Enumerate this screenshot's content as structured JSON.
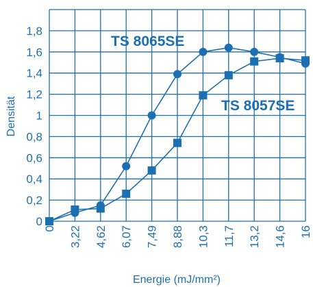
{
  "chart_data": {
    "type": "line",
    "title": "",
    "xlabel": "Energie (mJ/mm²)",
    "ylabel": "Densität",
    "categories": [
      "0",
      "3,22",
      "4,62",
      "6,07",
      "7,49",
      "8,88",
      "10,3",
      "11,7",
      "13,2",
      "14,6",
      "16"
    ],
    "y_ticks": [
      "0",
      "0,2",
      "0,4",
      "0,6",
      "0,8",
      "1",
      "1,2",
      "1,4",
      "1,6",
      "1,8"
    ],
    "ylim": [
      0,
      2.0
    ],
    "grid": true,
    "series": [
      {
        "name": "TS 8065SE",
        "marker": "circle",
        "values": [
          0.0,
          0.08,
          0.15,
          0.52,
          1.0,
          1.39,
          1.6,
          1.64,
          1.6,
          1.55,
          1.49
        ]
      },
      {
        "name": "TS 8057SE",
        "marker": "square",
        "values": [
          0.0,
          0.11,
          0.12,
          0.26,
          0.48,
          0.74,
          1.19,
          1.38,
          1.51,
          1.54,
          1.52
        ]
      }
    ],
    "colors": {
      "line": "#1c6fb0",
      "grid": "#1c6fb0",
      "text": "#1c6fb0",
      "background": "#ffffff"
    }
  }
}
